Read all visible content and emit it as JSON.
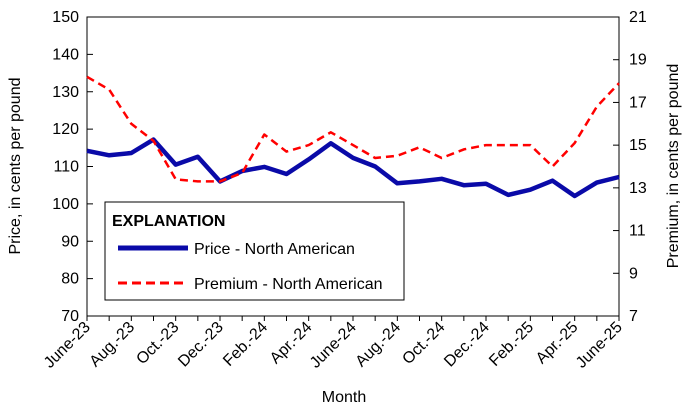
{
  "chart_data": {
    "type": "line",
    "xlabel": "Month",
    "ylabel_left": "Price, in cents per pound",
    "ylabel_right": "Premium, in cents per pound",
    "ylim_left": [
      70,
      150
    ],
    "ylim_right": [
      7,
      21
    ],
    "yticks_left": [
      "70",
      "80",
      "90",
      "100",
      "110",
      "120",
      "130",
      "140",
      "150"
    ],
    "yticks_right": [
      "7",
      "9",
      "11",
      "13",
      "15",
      "17",
      "19",
      "21"
    ],
    "x": [
      "June-23",
      "July-23",
      "Aug.-23",
      "Sep.-23",
      "Oct.-23",
      "Nov.-23",
      "Dec.-23",
      "Jan.-24",
      "Feb.-24",
      "Mar.-24",
      "Apr.-24",
      "May-24",
      "June-24",
      "July-24",
      "Aug.-24",
      "Sep.-24",
      "Oct.-24",
      "Nov.-24",
      "Dec.-24",
      "Jan.-25",
      "Feb.-25",
      "Mar.-25",
      "Apr.-25",
      "May-25",
      "June-25"
    ],
    "xtick_labels": [
      "June-23",
      "Aug.-23",
      "Oct.-23",
      "Dec.-23",
      "Feb.-24",
      "Apr.-24",
      "June-24",
      "Aug.-24",
      "Oct.-24",
      "Dec.-24",
      "Feb.-25",
      "Apr.-25",
      "June-25"
    ],
    "legend": {
      "title": "EXPLANATION",
      "placement": "lower-left"
    },
    "grid": false,
    "series": [
      {
        "name": "Price - North American",
        "axis": "left",
        "color": "#0a0aa8",
        "style": "solid",
        "values": [
          114.2,
          113.0,
          113.6,
          117.2,
          110.5,
          112.6,
          106.0,
          108.8,
          109.9,
          108.0,
          111.9,
          116.2,
          112.3,
          110.0,
          105.5,
          106.0,
          106.7,
          105.0,
          105.4,
          102.4,
          103.8,
          106.2,
          102.1,
          105.7,
          107.2
        ]
      },
      {
        "name": "Premium - North American",
        "axis": "right",
        "color": "#ff0000",
        "style": "dashed",
        "values": [
          18.2,
          17.6,
          16.0,
          15.2,
          13.4,
          13.3,
          13.3,
          13.7,
          15.5,
          14.7,
          15.0,
          15.6,
          15.0,
          14.4,
          14.5,
          14.9,
          14.4,
          14.8,
          15.0,
          15.0,
          15.0,
          14.0,
          15.1,
          16.8,
          17.9
        ]
      }
    ]
  }
}
